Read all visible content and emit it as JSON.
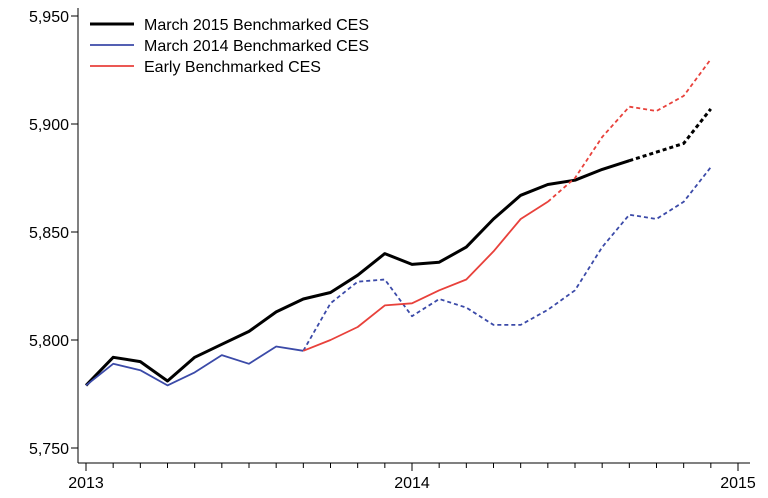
{
  "chart_data": {
    "type": "line",
    "title": "",
    "xlabel": "",
    "ylabel": "",
    "x_unit": "month",
    "x_ticks": [
      {
        "label": "2013",
        "month": 0
      },
      {
        "label": "2014",
        "month": 12
      },
      {
        "label": "2015",
        "month": 24
      }
    ],
    "xlim": [
      0,
      24
    ],
    "ylim": [
      5750,
      5950
    ],
    "y_ticks": [
      {
        "label": "5,750",
        "value": 5750
      },
      {
        "label": "5,800",
        "value": 5800
      },
      {
        "label": "5,850",
        "value": 5850
      },
      {
        "label": "5,900",
        "value": 5900
      },
      {
        "label": "5,950",
        "value": 5950
      }
    ],
    "legend_position": "top-left",
    "series": [
      {
        "name": "March 2015 Benchmarked CES",
        "color": "#000000",
        "style": "solid",
        "x": [
          0,
          1,
          2,
          3,
          4,
          5,
          6,
          7,
          8,
          9,
          10,
          11,
          12,
          13,
          14,
          15,
          16,
          17,
          18,
          19,
          20
        ],
        "values": [
          5779,
          5792,
          5790,
          5781,
          5792,
          5798,
          5804,
          5813,
          5819,
          5822,
          5830,
          5840,
          5835,
          5836,
          5843,
          5856,
          5867,
          5872,
          5874,
          5879,
          5883
        ]
      },
      {
        "name": "",
        "color": "#000000",
        "style": "dotted",
        "x": [
          20,
          21,
          22,
          23
        ],
        "values": [
          5883,
          5887,
          5891,
          5907
        ]
      },
      {
        "name": "March 2014 Benchmarked CES",
        "color": "#3b4aa8",
        "style": "solid",
        "x": [
          0,
          1,
          2,
          3,
          4,
          5,
          6,
          7,
          8
        ],
        "values": [
          5779,
          5789,
          5786,
          5779,
          5785,
          5793,
          5789,
          5797,
          5795
        ]
      },
      {
        "name": "",
        "color": "#3b4aa8",
        "style": "dashed",
        "x": [
          8,
          9,
          10,
          11,
          12,
          13,
          14,
          15,
          16,
          17,
          18,
          19,
          20,
          21,
          22,
          23
        ],
        "values": [
          5795,
          5817,
          5827,
          5828,
          5811,
          5819,
          5815,
          5807,
          5807,
          5814,
          5823,
          5843,
          5858,
          5856,
          5864,
          5880
        ]
      },
      {
        "name": "Early Benchmarked CES",
        "color": "#e8413b",
        "style": "solid",
        "x": [
          8,
          9,
          10,
          11,
          12,
          13,
          14,
          15,
          16,
          17
        ],
        "values": [
          5795,
          5800,
          5806,
          5816,
          5817,
          5823,
          5828,
          5841,
          5856,
          5864
        ]
      },
      {
        "name": "",
        "color": "#e8413b",
        "style": "dashed",
        "x": [
          17,
          18,
          19,
          20,
          21,
          22,
          23
        ],
        "values": [
          5864,
          5875,
          5894,
          5908,
          5906,
          5913,
          5930
        ]
      }
    ]
  }
}
